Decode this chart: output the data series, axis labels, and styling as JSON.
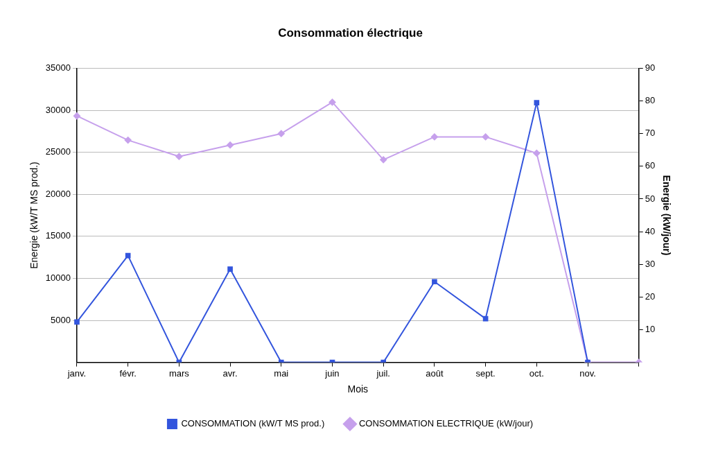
{
  "chart_data": {
    "type": "line",
    "title": "Consommation électrique",
    "xlabel": "Mois",
    "ylabel": "Energie (kW/T MS prod.)",
    "y2label": "Energie (kW/jour)",
    "categories": [
      "janv.",
      "févr.",
      "mars",
      "avr.",
      "mai",
      "juin",
      "juil.",
      "août",
      "sept.",
      "oct.",
      "nov.",
      null
    ],
    "series": [
      {
        "name": "CONSOMMATION (kW/T MS prod.)",
        "color": "#3355dd",
        "marker": "square",
        "values": [
          4800,
          12700,
          0,
          11100,
          0,
          0,
          0,
          9600,
          5200,
          30900,
          0,
          null
        ]
      },
      {
        "name": "CONSOMMATION ELECTRIQUE (kW/jour)",
        "color": "#c6a0ec",
        "marker": "diamond",
        "axis": "y2",
        "values": [
          75.4,
          68,
          63,
          66.5,
          70,
          79.6,
          62,
          69,
          69,
          64,
          0,
          0
        ]
      }
    ],
    "ylim": [
      0,
      35000
    ],
    "yticks": [
      5000,
      10000,
      15000,
      20000,
      25000,
      30000,
      35000
    ],
    "y2lim": [
      0,
      90
    ],
    "y2ticks": [
      10,
      20,
      30,
      40,
      50,
      60,
      70,
      80,
      90
    ],
    "grid": "y",
    "legend": "bottom"
  }
}
